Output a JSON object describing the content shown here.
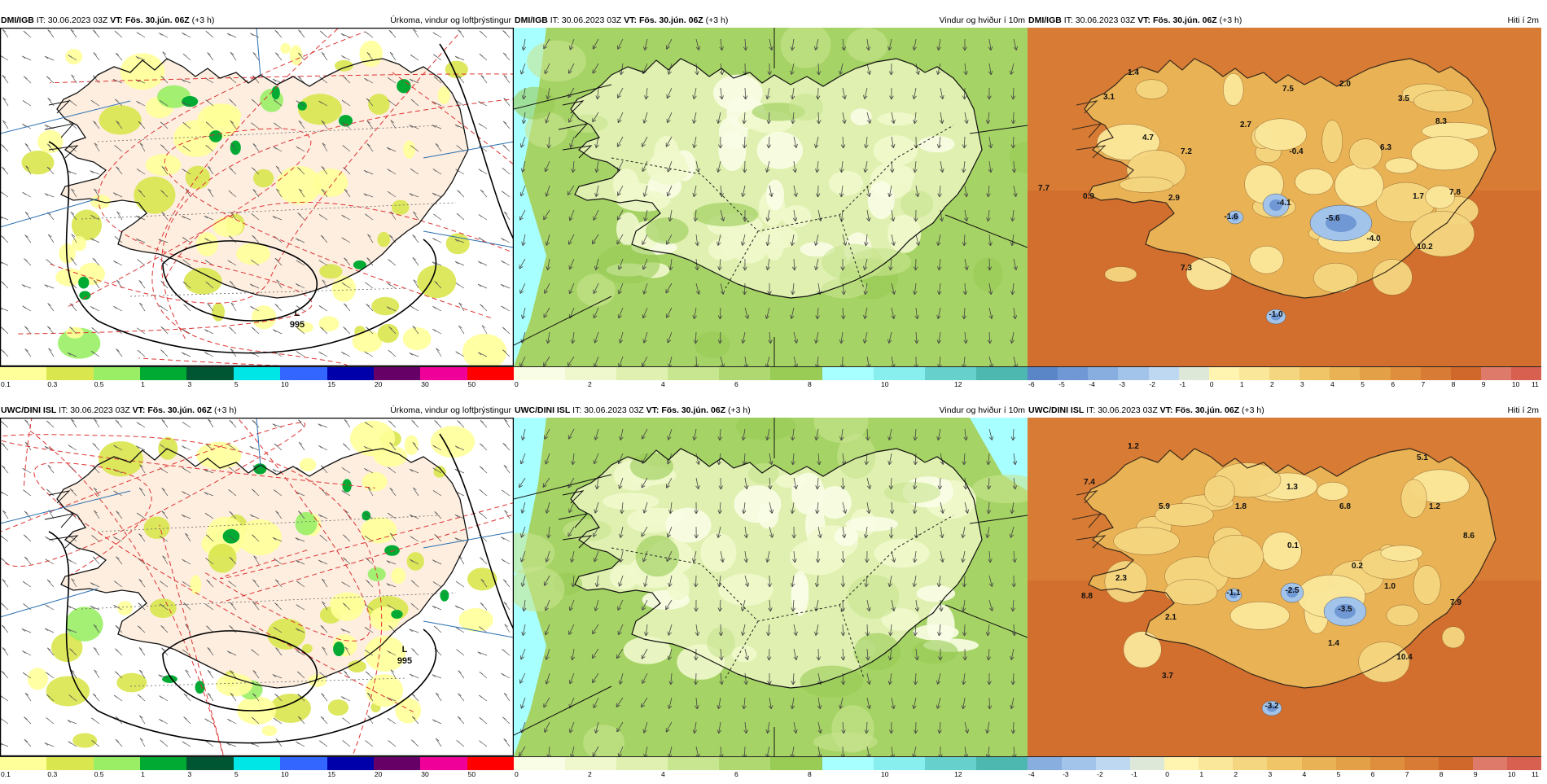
{
  "panels": [
    {
      "id": "dmi-precip",
      "model": "DMI/IGB",
      "it_label": "IT:",
      "it": "30.06.2023 03Z",
      "vt_label": "VT:",
      "vt": "Fös. 30.jún. 06Z",
      "lead": "(+3 h)",
      "title": "Úrkoma, vindur og loftþrýstingur",
      "legend": {
        "colors": [
          "#ffff99",
          "#d9e64d",
          "#99ee66",
          "#00aa33",
          "#005533",
          "#00e5e5",
          "#3366ff",
          "#0000aa",
          "#660066",
          "#ee0099",
          "#ff0000"
        ],
        "ticks": [
          "0.1",
          "0.3",
          "0.5",
          "1",
          "3",
          "5",
          "10",
          "15",
          "20",
          "30",
          "50"
        ]
      },
      "low_letter": "L",
      "low_value": "995"
    },
    {
      "id": "dmi-wind",
      "model": "DMI/IGB",
      "it_label": "IT:",
      "it": "30.06.2023 03Z",
      "vt_label": "VT:",
      "vt": "Fös. 30.jún. 06Z",
      "lead": "(+3 h)",
      "title": "Vindur og hviður í 10m",
      "legend": {
        "colors": [
          "#fafde6",
          "#eff8cc",
          "#dff0b0",
          "#c8e58f",
          "#b0d870",
          "#98cc55",
          "#a8ffff",
          "#88eeee",
          "#66d0cc",
          "#4cb8b0"
        ],
        "ticks": [
          "0",
          "2",
          "4",
          "6",
          "8",
          "10",
          "12"
        ]
      }
    },
    {
      "id": "dmi-temp",
      "model": "DMI/IGB",
      "it_label": "IT:",
      "it": "30.06.2023 03Z",
      "vt_label": "VT:",
      "vt": "Fös. 30.jún. 06Z",
      "lead": "(+3 h)",
      "title": "Hiti í 2m",
      "legend": {
        "colors": [
          "#5a86c8",
          "#6f98d4",
          "#88aee0",
          "#a3c4ea",
          "#bfd8f2",
          "#dde8d8",
          "#fff4b0",
          "#fbe79a",
          "#f5d680",
          "#efc568",
          "#e8b255",
          "#e3a046",
          "#de8e3c",
          "#d87b34",
          "#d0682c",
          "#de7a6a",
          "#d86050"
        ],
        "ticks": [
          "-6",
          "-5",
          "-4",
          "-3",
          "-2",
          "-1",
          "0",
          "1",
          "2",
          "3",
          "4",
          "5",
          "6",
          "7",
          "8",
          "9",
          "10",
          "11"
        ]
      },
      "values": [
        "1.4",
        "3.1",
        "4.7",
        "7.2",
        "2.7",
        "7.5",
        "2.0",
        "3.5",
        "8.3",
        "-0.4",
        "6.3",
        "7.7",
        "0.9",
        "2.9",
        "-1.6",
        "-4.1",
        "-5.6",
        "-4.0",
        "1.7",
        "7.8",
        "10.2",
        "7.3",
        "-1.0"
      ]
    },
    {
      "id": "uwc-precip",
      "model": "UWC/DINI ISL",
      "it_label": "IT:",
      "it": "30.06.2023 03Z",
      "vt_label": "VT:",
      "vt": "Fös. 30.jún. 06Z",
      "lead": "(+3 h)",
      "title": "Úrkoma, vindur og loftþrýstingur",
      "legend": {
        "colors": [
          "#ffff99",
          "#d9e64d",
          "#99ee66",
          "#00aa33",
          "#005533",
          "#00e5e5",
          "#3366ff",
          "#0000aa",
          "#660066",
          "#ee0099",
          "#ff0000"
        ],
        "ticks": [
          "0.1",
          "0.3",
          "0.5",
          "1",
          "3",
          "5",
          "10",
          "15",
          "20",
          "30",
          "50"
        ]
      },
      "low_letter": "L",
      "low_value": "995"
    },
    {
      "id": "uwc-wind",
      "model": "UWC/DINI ISL",
      "it_label": "IT:",
      "it": "30.06.2023 03Z",
      "vt_label": "VT:",
      "vt": "Fös. 30.jún. 06Z",
      "lead": "(+3 h)",
      "title": "Vindur og hviður í 10m",
      "legend": {
        "colors": [
          "#fafde6",
          "#eff8cc",
          "#dff0b0",
          "#c8e58f",
          "#b0d870",
          "#98cc55",
          "#a8ffff",
          "#88eeee",
          "#66d0cc",
          "#4cb8b0"
        ],
        "ticks": [
          "0",
          "2",
          "4",
          "6",
          "8",
          "10",
          "12"
        ]
      }
    },
    {
      "id": "uwc-temp",
      "model": "UWC/DINI ISL",
      "it_label": "IT:",
      "it": "30.06.2023 03Z",
      "vt_label": "VT:",
      "vt": "Fös. 30.jún. 06Z",
      "lead": "(+3 h)",
      "title": "Hiti í 2m",
      "legend": {
        "colors": [
          "#88aee0",
          "#a3c4ea",
          "#bfd8f2",
          "#dde8d8",
          "#fff4b0",
          "#fbe79a",
          "#f5d680",
          "#efc568",
          "#e8b255",
          "#e3a046",
          "#de8e3c",
          "#d87b34",
          "#d0682c",
          "#de7a6a",
          "#d86050"
        ],
        "ticks": [
          "-4",
          "-3",
          "-2",
          "-1",
          "0",
          "1",
          "2",
          "3",
          "4",
          "5",
          "6",
          "7",
          "8",
          "9",
          "10",
          "11"
        ]
      },
      "values": [
        "1.2",
        "5.1",
        "7.4",
        "5.9",
        "1.3",
        "1.8",
        "6.8",
        "1.2",
        "8.6",
        "0.1",
        "0.2",
        "8.8",
        "2.3",
        "-1.1",
        "-2.5",
        "-3.5",
        "1.0",
        "7.9",
        "2.1",
        "1.4",
        "10.4",
        "3.7",
        "-3.2"
      ]
    }
  ]
}
